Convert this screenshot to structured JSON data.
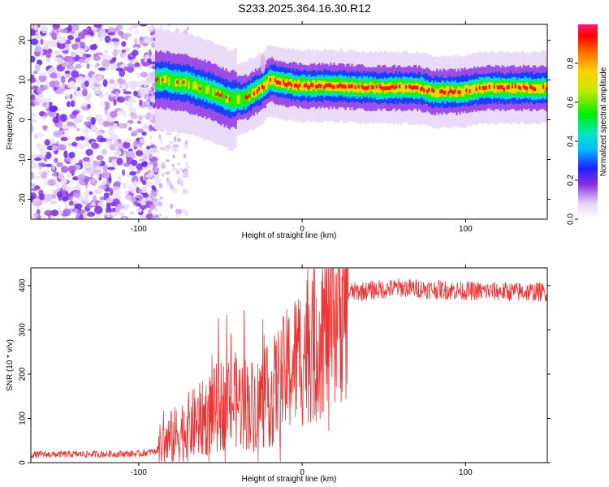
{
  "title": "S233.2025.364.16.30.R12",
  "chart_data": [
    {
      "type": "heatmap",
      "xlabel": "Height of straight line (km)",
      "ylabel": "Frequency (Hz)",
      "xlim": [
        -166,
        150
      ],
      "ylim": [
        -25,
        24
      ],
      "xticks": [
        -100,
        0,
        100
      ],
      "yticks": [
        -20,
        -10,
        0,
        10,
        20
      ],
      "colorbar": {
        "label": "Normalized spectral amplitude",
        "range": [
          0,
          1
        ],
        "ticks": [
          "0.0",
          "0.2",
          "0.4",
          "0.6",
          "0.8"
        ],
        "tick_values": [
          0,
          0.2,
          0.4,
          0.6,
          0.8
        ]
      },
      "dominant_ridge": [
        {
          "x": -85,
          "y": 10
        },
        {
          "x": -70,
          "y": 9
        },
        {
          "x": -55,
          "y": 7
        },
        {
          "x": -45,
          "y": 5
        },
        {
          "x": -35,
          "y": 5.5
        },
        {
          "x": -25,
          "y": 8
        },
        {
          "x": -20,
          "y": 10
        },
        {
          "x": -10,
          "y": 9
        },
        {
          "x": 0,
          "y": 8.5
        },
        {
          "x": 20,
          "y": 8.5
        },
        {
          "x": 40,
          "y": 8
        },
        {
          "x": 70,
          "y": 8
        },
        {
          "x": 80,
          "y": 7
        },
        {
          "x": 95,
          "y": 7
        },
        {
          "x": 110,
          "y": 8
        },
        {
          "x": 150,
          "y": 8
        }
      ]
    },
    {
      "type": "line",
      "xlabel": "Height of straight line (km)",
      "ylabel": "SNR (10 * v/v)",
      "xlim": [
        -166,
        150
      ],
      "ylim": [
        0,
        440
      ],
      "xticks": [
        -100,
        0,
        100
      ],
      "yticks": [
        0,
        100,
        200,
        300,
        400
      ],
      "color": "#ee3333",
      "envelope": [
        {
          "x": -166,
          "y": 18
        },
        {
          "x": -100,
          "y": 20
        },
        {
          "x": -90,
          "y": 25
        },
        {
          "x": -80,
          "y": 55
        },
        {
          "x": -70,
          "y": 80
        },
        {
          "x": -60,
          "y": 100
        },
        {
          "x": -50,
          "y": 130
        },
        {
          "x": -40,
          "y": 140
        },
        {
          "x": -30,
          "y": 130
        },
        {
          "x": -20,
          "y": 150
        },
        {
          "x": -10,
          "y": 200
        },
        {
          "x": 0,
          "y": 250
        },
        {
          "x": 10,
          "y": 290
        },
        {
          "x": 20,
          "y": 340
        },
        {
          "x": 25,
          "y": 375
        },
        {
          "x": 30,
          "y": 385
        },
        {
          "x": 60,
          "y": 395
        },
        {
          "x": 100,
          "y": 388
        },
        {
          "x": 150,
          "y": 385
        }
      ]
    }
  ]
}
